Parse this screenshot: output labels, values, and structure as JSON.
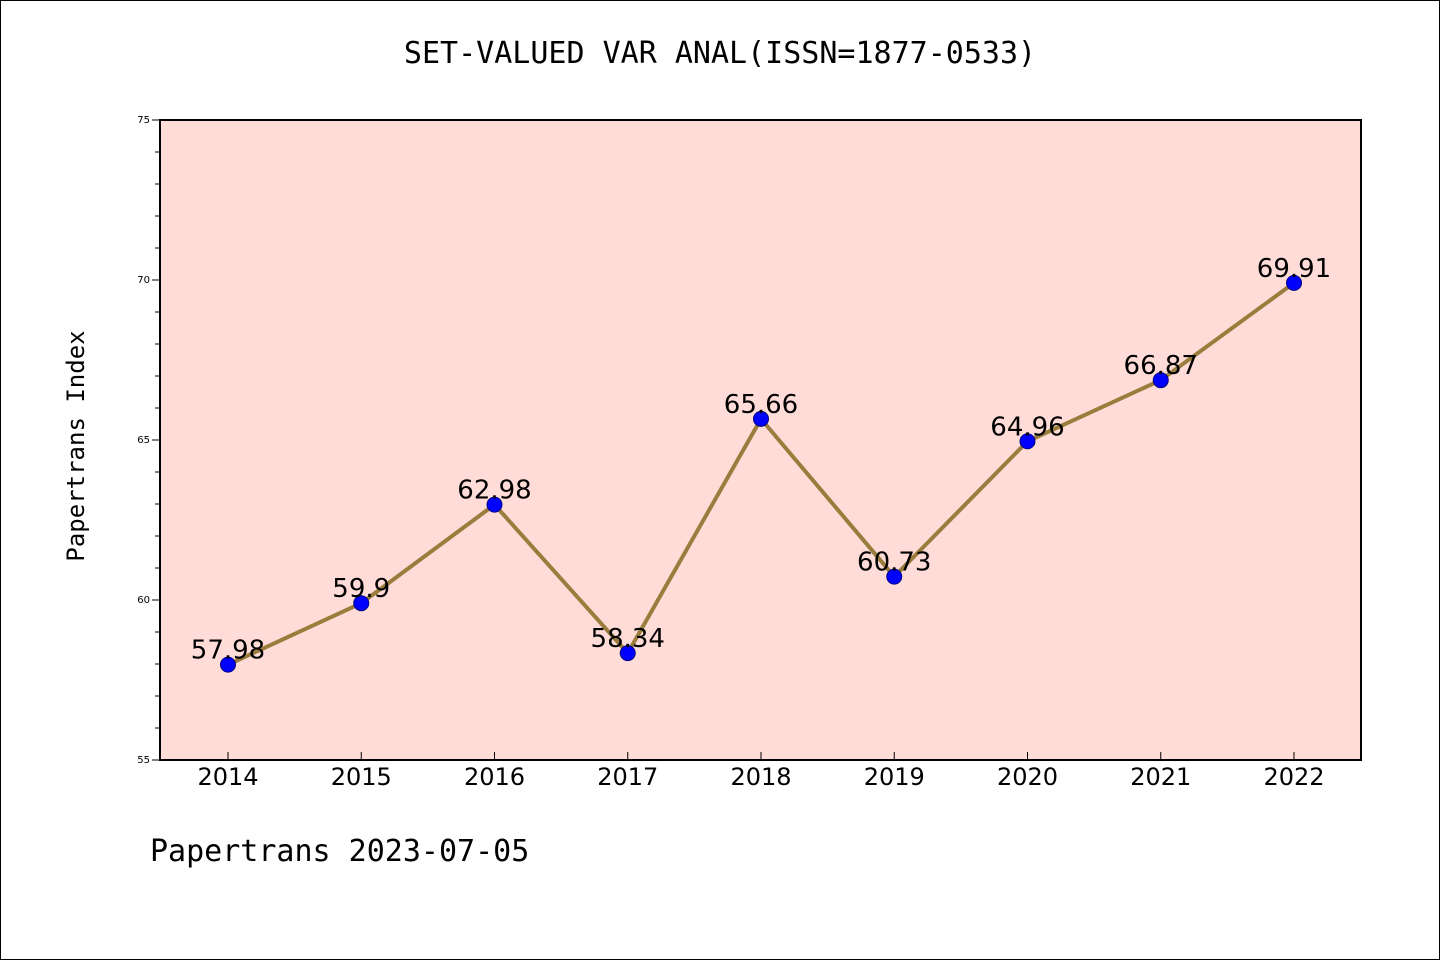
{
  "chart_data": {
    "type": "line",
    "title": "SET-VALUED VAR ANAL(ISSN=1877-0533)",
    "ylabel": "Papertrans Index",
    "xlabel": "",
    "categories": [
      "2014",
      "2015",
      "2016",
      "2017",
      "2018",
      "2019",
      "2020",
      "2021",
      "2022"
    ],
    "series": [
      {
        "values": [
          57.98,
          59.9,
          62.98,
          58.34,
          65.66,
          60.73,
          64.96,
          66.87,
          69.91
        ],
        "labels": [
          "57.98",
          "59.9",
          "62.98",
          "58.34",
          "65.66",
          "60.73",
          "64.96",
          "66.87",
          "69.91"
        ]
      }
    ],
    "ylim": [
      55,
      75
    ],
    "yticks": [
      55,
      60,
      65,
      70,
      75
    ],
    "ytick_labels": [
      "55",
      "60",
      "65",
      "70",
      "75"
    ],
    "grid": false,
    "colors": {
      "plot_background": "#FFDCD8",
      "line": "#9A7D3C",
      "marker": "#0000FF",
      "marker_edge": "#000080"
    }
  },
  "footer": "Papertrans 2023-07-05"
}
